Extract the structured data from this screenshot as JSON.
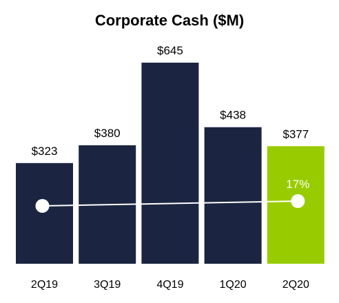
{
  "chart_data": {
    "type": "bar",
    "title": "Corporate Cash ($M)",
    "categories": [
      "2Q19",
      "3Q19",
      "4Q19",
      "1Q20",
      "2Q20"
    ],
    "values": [
      323,
      380,
      645,
      438,
      377
    ],
    "value_labels": [
      "$323",
      "$380",
      "$645",
      "$438",
      "$377"
    ],
    "bar_colors": [
      "#1b2541",
      "#1b2541",
      "#1b2541",
      "#1b2541",
      "#99cc00"
    ],
    "ylim": [
      0,
      645
    ],
    "grid": false,
    "legend": "none",
    "annotation": {
      "label": "17%",
      "from_category": "2Q19",
      "to_category": "2Q20",
      "line_color": "#ffffff",
      "marker_color": "#ffffff"
    }
  }
}
